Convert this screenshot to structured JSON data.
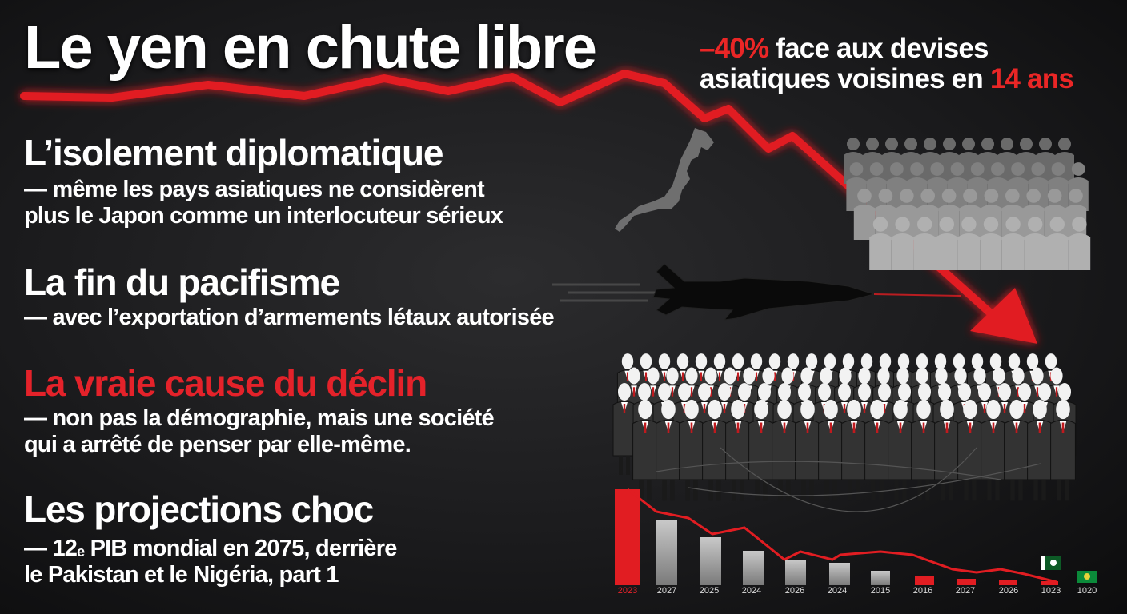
{
  "title": "Le yen en chute libre",
  "subtitle": {
    "pct": "–40%",
    "part1": " face aux devises",
    "part2": "asiatiques voisines en ",
    "years": "14 ans"
  },
  "sections": [
    {
      "heading": "L’isolement diplomatique",
      "lines": [
        "— même les pays asiatiques ne considèrent",
        "plus le Japon comme un interlocuteur sérieux"
      ]
    },
    {
      "heading": "La fin du pacifisme",
      "lines": [
        "— avec l’exportation d’armements létaux autorisée"
      ]
    },
    {
      "heading": "La vraie cause du déclin",
      "lines": [
        "— non pas la démographie, mais une société",
        "qui a arrêté de penser par elle-même."
      ]
    },
    {
      "heading": "Les projections choc",
      "line1_pre": "— 12",
      "line1_sup": "e",
      "line1_post": " PIB mondial en 2075, derrière",
      "line2": "le Pakistan et le Nigéria, part 1"
    }
  ],
  "bar_years": [
    "2023",
    "2027",
    "2025",
    "2024",
    "2026",
    "2024",
    "2015",
    "2016",
    "2027",
    "2026",
    "1023",
    "1020"
  ],
  "colors": {
    "accent": "#e4222a",
    "background": "#1b1b1d",
    "text": "#ffffff"
  },
  "icons": [
    "japan-map-icon",
    "fighter-jet-icon",
    "crowd-icon",
    "pakistan-flag-icon",
    "nigeria-flag-icon"
  ]
}
